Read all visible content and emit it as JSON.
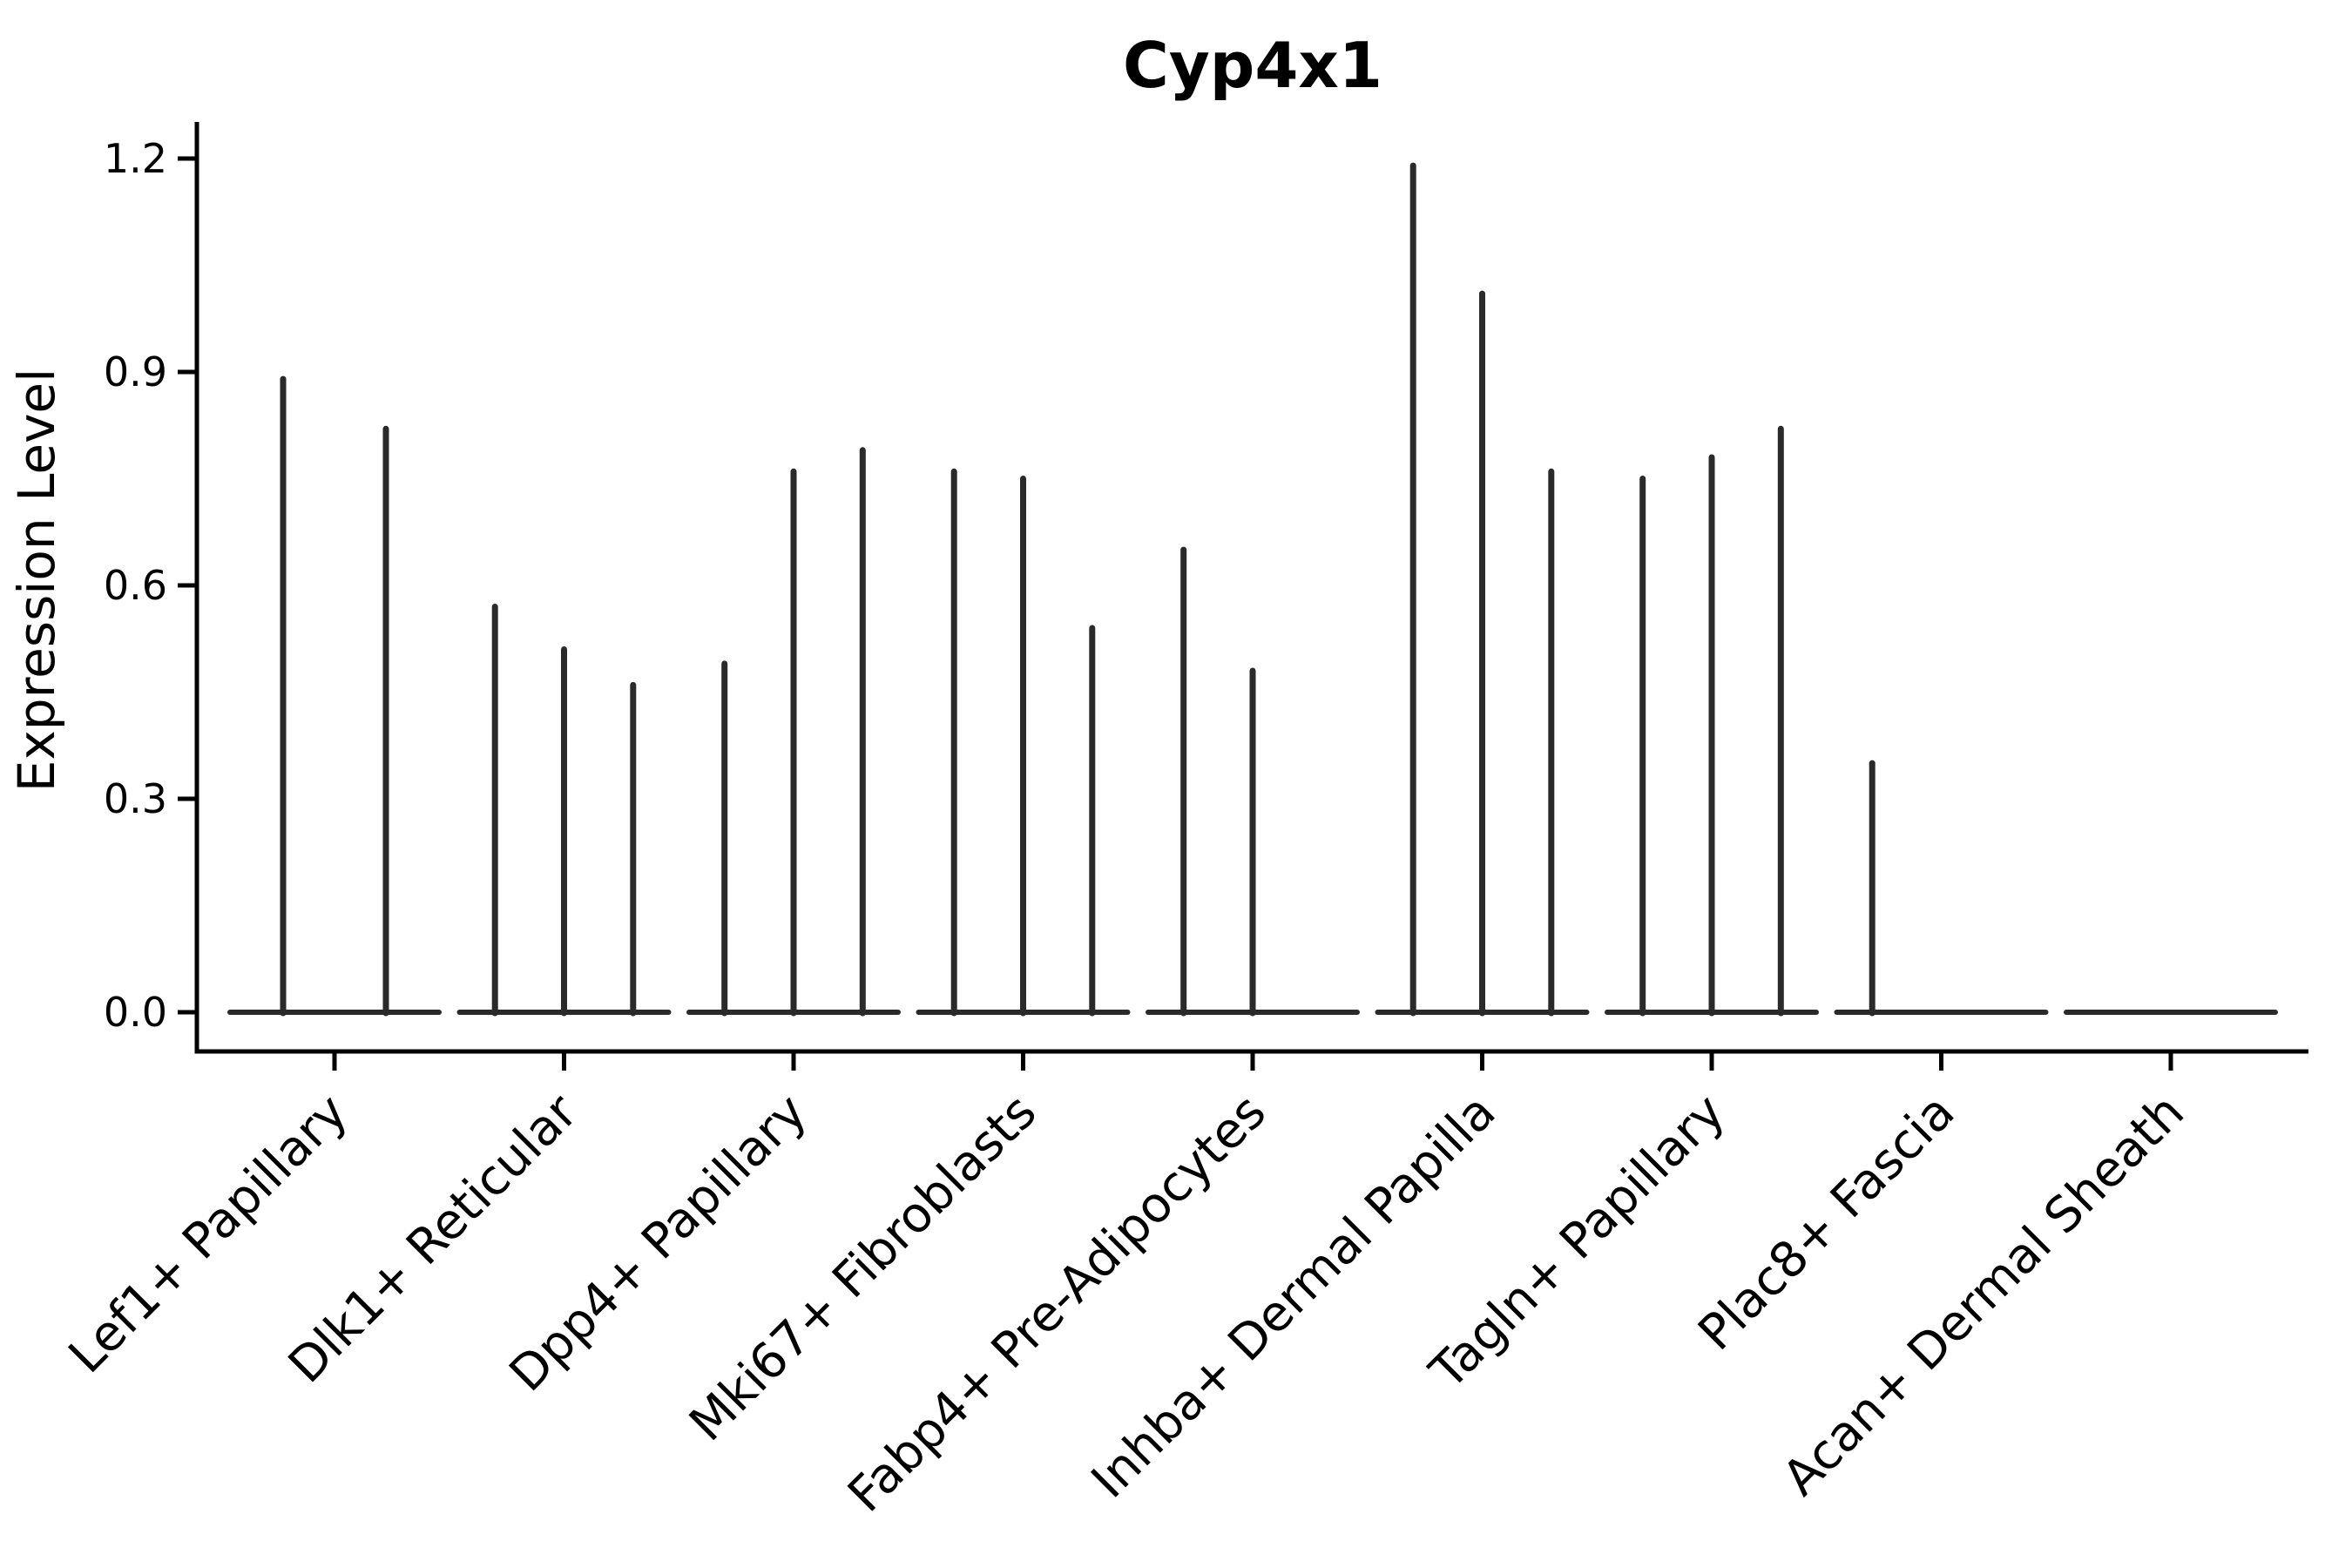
{
  "chart_data": {
    "type": "violin",
    "title": "Cyp4x1",
    "ylabel": "Expression Level",
    "xlabel": "",
    "ylim": [
      0.0,
      1.26
    ],
    "yticks": [
      {
        "value": 0.0,
        "label": "0.0"
      },
      {
        "value": 0.3,
        "label": "0.3"
      },
      {
        "value": 0.6,
        "label": "0.6"
      },
      {
        "value": 0.9,
        "label": "0.9"
      },
      {
        "value": 1.2,
        "label": "1.2"
      }
    ],
    "grid": "off",
    "legend": "none",
    "categories": [
      "Lef1+ Papillary",
      "Dlk1+ Reticular",
      "Dpp4+ Papillary",
      "Mki67+ Fibroblasts",
      "Fabp4+ Pre-Adipocytes",
      "Inhba+ Dermal Papilla",
      "Tagln+ Papillary",
      "Plac8+ Fascia",
      "Acan+ Dermal Sheath"
    ],
    "groups": [
      {
        "label": "Lef1+ Papillary",
        "violin_max_values": [
          0.89,
          0.82
        ]
      },
      {
        "label": "Dlk1+ Reticular",
        "violin_max_values": [
          0.57,
          0.51,
          0.46
        ]
      },
      {
        "label": "Dpp4+ Papillary",
        "violin_max_values": [
          0.49,
          0.76,
          0.79
        ]
      },
      {
        "label": "Mki67+ Fibroblasts",
        "violin_max_values": [
          0.76,
          0.75,
          0.54
        ]
      },
      {
        "label": "Fabp4+ Pre-Adipocytes",
        "violin_max_values": [
          0.65,
          0.48,
          0.0
        ]
      },
      {
        "label": "Inhba+ Dermal Papilla",
        "violin_max_values": [
          1.19,
          1.01,
          0.76
        ]
      },
      {
        "label": "Tagln+ Papillary",
        "violin_max_values": [
          0.75,
          0.78,
          0.82
        ]
      },
      {
        "label": "Plac8+ Fascia",
        "violin_max_values": [
          0.35,
          0.0,
          0.0
        ]
      },
      {
        "label": "Acan+ Dermal Sheath",
        "violin_max_values": [
          0.0,
          0.0,
          0.0
        ]
      }
    ],
    "colors": {
      "violin": "#2a2a2a",
      "axis": "#000000",
      "text": "#000000",
      "background": "#ffffff"
    }
  }
}
